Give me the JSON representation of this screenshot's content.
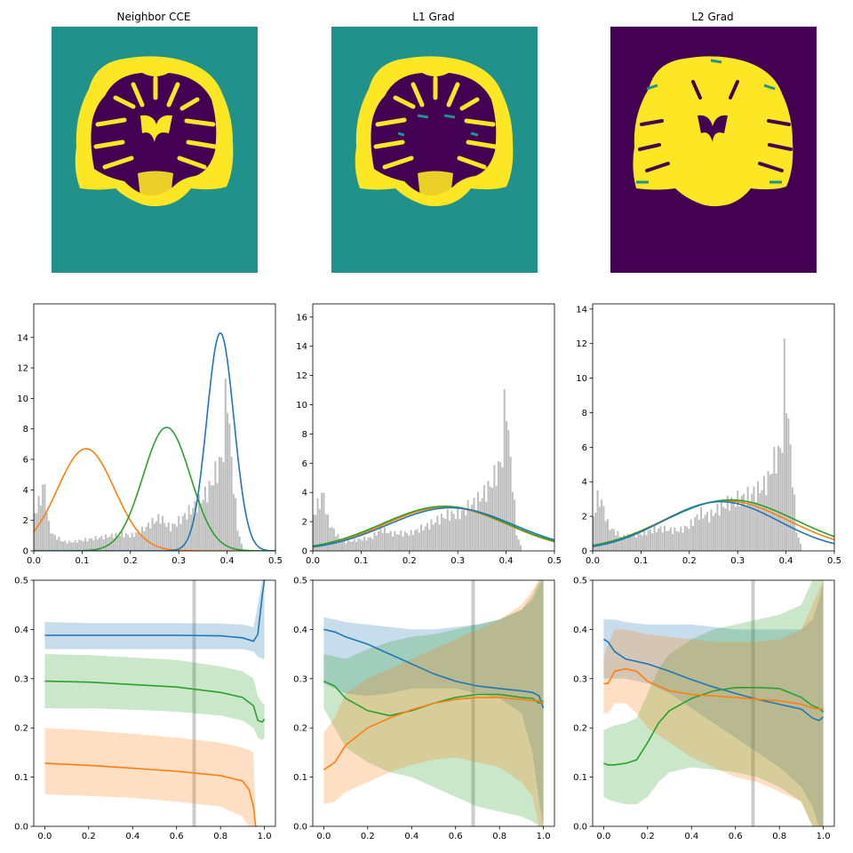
{
  "figure": {
    "panel_titles": [
      "Neighbor CCE",
      "L1 Grad",
      "L2 Grad"
    ]
  },
  "colors": {
    "image_bg_teal": "#21918c",
    "image_dark": "#440154",
    "image_yellow": "#fde725",
    "series_blue": "#1f77b4",
    "series_orange": "#ff7f0e",
    "series_green": "#2ca02c",
    "histogram": "#bdbdbd",
    "marker_line": "#cccccc"
  },
  "chart_data": [
    {
      "type": "heatmap",
      "title": "Neighbor CCE",
      "description_colors": {
        "background": "#21918c",
        "matter_a": "#440154",
        "matter_b": "#fde725"
      }
    },
    {
      "type": "heatmap",
      "title": "L1 Grad",
      "description_colors": {
        "background": "#21918c",
        "matter_a": "#440154",
        "matter_b": "#fde725"
      }
    },
    {
      "type": "heatmap",
      "title": "L2 Grad",
      "description_colors": {
        "background": "#440154",
        "matter_a": "#fde725",
        "matter_b": "#21918c"
      }
    },
    {
      "type": "line",
      "title": "",
      "xlim": [
        0,
        0.5
      ],
      "ylim": [
        0,
        16.2
      ],
      "xticks": [
        0.0,
        0.1,
        0.2,
        0.3,
        0.4,
        0.5
      ],
      "yticks": [
        0,
        2,
        4,
        6,
        8,
        10,
        12,
        14
      ],
      "histogram": {
        "x": [
          0.0,
          0.01,
          0.02,
          0.03,
          0.04,
          0.05,
          0.06,
          0.08,
          0.1,
          0.12,
          0.14,
          0.16,
          0.18,
          0.2,
          0.22,
          0.24,
          0.26,
          0.28,
          0.3,
          0.32,
          0.34,
          0.36,
          0.37,
          0.38,
          0.39,
          0.395,
          0.4,
          0.405,
          0.41,
          0.42,
          0.43
        ],
        "y": [
          2.5,
          3.2,
          4.5,
          1.5,
          1.0,
          0.8,
          0.6,
          0.6,
          0.7,
          0.8,
          0.9,
          1.0,
          1.1,
          1.0,
          1.3,
          1.8,
          2.2,
          1.5,
          2.0,
          2.6,
          3.2,
          4.0,
          4.8,
          5.5,
          6.3,
          9.8,
          10.8,
          6.5,
          5.0,
          1.5,
          0.2
        ]
      },
      "series": [
        {
          "color": "#ff7f0e",
          "gaussian": {
            "mu": 0.108,
            "sigma": 0.059,
            "peak": 6.7
          }
        },
        {
          "color": "#2ca02c",
          "gaussian": {
            "mu": 0.275,
            "sigma": 0.049,
            "peak": 8.1
          }
        },
        {
          "color": "#1f77b4",
          "gaussian": {
            "mu": 0.386,
            "sigma": 0.028,
            "peak": 14.3
          }
        }
      ]
    },
    {
      "type": "line",
      "title": "",
      "xlim": [
        0,
        0.5
      ],
      "ylim": [
        0,
        16.9
      ],
      "xticks": [
        0.0,
        0.1,
        0.2,
        0.3,
        0.4,
        0.5
      ],
      "yticks": [
        0,
        2,
        4,
        6,
        8,
        10,
        12,
        14,
        16
      ],
      "histogram": {
        "x": [
          0.0,
          0.01,
          0.02,
          0.03,
          0.04,
          0.05,
          0.06,
          0.08,
          0.1,
          0.12,
          0.14,
          0.16,
          0.18,
          0.2,
          0.22,
          0.24,
          0.26,
          0.28,
          0.3,
          0.32,
          0.34,
          0.36,
          0.37,
          0.38,
          0.39,
          0.395,
          0.4,
          0.405,
          0.41,
          0.42,
          0.43
        ],
        "y": [
          2.5,
          3.2,
          4.0,
          2.0,
          1.5,
          1.0,
          0.6,
          0.7,
          0.8,
          0.9,
          1.5,
          1.2,
          1.2,
          1.2,
          1.5,
          1.8,
          2.2,
          2.5,
          2.5,
          3.0,
          3.5,
          4.2,
          4.8,
          5.5,
          6.2,
          9.6,
          10.6,
          6.5,
          5.5,
          1.2,
          0.2
        ]
      },
      "series": [
        {
          "color": "#ff7f0e",
          "gaussian": {
            "mu": 0.275,
            "sigma": 0.127,
            "peak": 3.0
          }
        },
        {
          "color": "#2ca02c",
          "gaussian": {
            "mu": 0.273,
            "sigma": 0.13,
            "peak": 3.05
          }
        },
        {
          "color": "#1f77b4",
          "gaussian": {
            "mu": 0.285,
            "sigma": 0.13,
            "peak": 2.95
          }
        }
      ]
    },
    {
      "type": "line",
      "title": "",
      "xlim": [
        0,
        0.5
      ],
      "ylim": [
        0,
        14.3
      ],
      "xticks": [
        0.0,
        0.1,
        0.2,
        0.3,
        0.4,
        0.5
      ],
      "yticks": [
        0,
        2,
        4,
        6,
        8,
        10,
        12,
        14
      ],
      "histogram": {
        "x": [
          0.0,
          0.01,
          0.02,
          0.03,
          0.04,
          0.05,
          0.06,
          0.08,
          0.1,
          0.12,
          0.14,
          0.16,
          0.18,
          0.2,
          0.22,
          0.24,
          0.26,
          0.28,
          0.3,
          0.32,
          0.34,
          0.36,
          0.37,
          0.38,
          0.39,
          0.395,
          0.4,
          0.405,
          0.41,
          0.42,
          0.43
        ],
        "y": [
          2.0,
          3.2,
          2.6,
          1.5,
          1.2,
          1.0,
          0.8,
          0.9,
          1.0,
          1.2,
          1.3,
          1.2,
          1.2,
          1.5,
          2.2,
          2.0,
          2.5,
          2.8,
          3.0,
          3.2,
          3.5,
          4.0,
          5.0,
          5.5,
          6.0,
          10.7,
          9.0,
          6.5,
          5.0,
          1.2,
          0.2
        ]
      },
      "series": [
        {
          "color": "#ff7f0e",
          "gaussian": {
            "mu": 0.275,
            "sigma": 0.13,
            "peak": 2.9
          }
        },
        {
          "color": "#2ca02c",
          "gaussian": {
            "mu": 0.285,
            "sigma": 0.135,
            "peak": 2.95
          }
        },
        {
          "color": "#1f77b4",
          "gaussian": {
            "mu": 0.265,
            "sigma": 0.12,
            "peak": 2.85
          }
        }
      ]
    },
    {
      "type": "area",
      "title": "",
      "xlim": [
        -0.05,
        1.05
      ],
      "ylim": [
        0,
        0.5
      ],
      "xticks": [
        0.0,
        0.2,
        0.4,
        0.6,
        0.8,
        1.0
      ],
      "yticks": [
        0.0,
        0.1,
        0.2,
        0.3,
        0.4,
        0.5
      ],
      "vline": 0.68,
      "series": [
        {
          "color": "#1f77b4",
          "x": [
            0,
            0.2,
            0.4,
            0.6,
            0.8,
            0.9,
            0.95,
            0.97,
            0.99,
            1.0
          ],
          "mean": [
            0.388,
            0.388,
            0.388,
            0.388,
            0.387,
            0.383,
            0.376,
            0.39,
            0.47,
            0.5
          ],
          "lower": [
            0.36,
            0.36,
            0.36,
            0.36,
            0.36,
            0.36,
            0.355,
            0.345,
            0.34,
            0.34
          ],
          "upper": [
            0.415,
            0.413,
            0.413,
            0.413,
            0.412,
            0.41,
            0.405,
            0.45,
            0.5,
            0.5
          ]
        },
        {
          "color": "#2ca02c",
          "x": [
            0,
            0.2,
            0.4,
            0.6,
            0.8,
            0.9,
            0.95,
            0.97,
            0.99,
            1.0
          ],
          "mean": [
            0.295,
            0.293,
            0.288,
            0.283,
            0.272,
            0.262,
            0.245,
            0.215,
            0.212,
            0.218
          ],
          "lower": [
            0.24,
            0.24,
            0.237,
            0.233,
            0.225,
            0.215,
            0.2,
            0.18,
            0.175,
            0.18
          ],
          "upper": [
            0.35,
            0.348,
            0.343,
            0.338,
            0.325,
            0.315,
            0.3,
            0.265,
            0.25,
            0.25
          ]
        },
        {
          "color": "#ff7f0e",
          "x": [
            0,
            0.2,
            0.4,
            0.6,
            0.8,
            0.9,
            0.93,
            0.95,
            0.96,
            0.97
          ],
          "mean": [
            0.128,
            0.124,
            0.118,
            0.112,
            0.103,
            0.092,
            0.075,
            0.04,
            0.0,
            0.0
          ],
          "lower": [
            0.065,
            0.062,
            0.058,
            0.05,
            0.04,
            0.02,
            0.0,
            0.0,
            0.0,
            0.0
          ],
          "upper": [
            0.2,
            0.195,
            0.188,
            0.18,
            0.17,
            0.16,
            0.155,
            0.15,
            0.0,
            0.0
          ]
        }
      ]
    },
    {
      "type": "area",
      "title": "",
      "xlim": [
        -0.05,
        1.05
      ],
      "ylim": [
        0,
        0.5
      ],
      "xticks": [
        0.0,
        0.2,
        0.4,
        0.6,
        0.8,
        1.0
      ],
      "yticks": [
        0.0,
        0.1,
        0.2,
        0.3,
        0.4,
        0.5
      ],
      "vline": 0.68,
      "series": [
        {
          "color": "#1f77b4",
          "x": [
            0,
            0.05,
            0.1,
            0.2,
            0.3,
            0.4,
            0.5,
            0.6,
            0.7,
            0.8,
            0.9,
            0.95,
            0.98,
            1.0
          ],
          "mean": [
            0.4,
            0.395,
            0.385,
            0.37,
            0.35,
            0.33,
            0.31,
            0.295,
            0.285,
            0.28,
            0.275,
            0.272,
            0.265,
            0.24
          ],
          "lower": [
            0.29,
            0.28,
            0.27,
            0.265,
            0.27,
            0.28,
            0.28,
            0.28,
            0.27,
            0.26,
            0.23,
            0.15,
            0.05,
            0.0
          ],
          "upper": [
            0.425,
            0.42,
            0.415,
            0.41,
            0.405,
            0.4,
            0.4,
            0.405,
            0.41,
            0.42,
            0.44,
            0.46,
            0.49,
            0.5
          ]
        },
        {
          "color": "#2ca02c",
          "x": [
            0,
            0.05,
            0.1,
            0.2,
            0.3,
            0.4,
            0.5,
            0.6,
            0.7,
            0.8,
            0.9,
            0.95,
            0.98,
            1.0
          ],
          "mean": [
            0.295,
            0.285,
            0.26,
            0.235,
            0.225,
            0.235,
            0.25,
            0.262,
            0.268,
            0.268,
            0.262,
            0.26,
            0.25,
            0.255
          ],
          "lower": [
            0.24,
            0.2,
            0.16,
            0.13,
            0.11,
            0.1,
            0.08,
            0.06,
            0.04,
            0.03,
            0.02,
            0.01,
            0.0,
            0.0
          ],
          "upper": [
            0.35,
            0.345,
            0.34,
            0.36,
            0.375,
            0.385,
            0.39,
            0.4,
            0.41,
            0.42,
            0.44,
            0.47,
            0.5,
            0.5
          ]
        },
        {
          "color": "#ff7f0e",
          "x": [
            0,
            0.05,
            0.1,
            0.2,
            0.3,
            0.4,
            0.5,
            0.6,
            0.7,
            0.8,
            0.9,
            0.95,
            0.98,
            1.0
          ],
          "mean": [
            0.115,
            0.13,
            0.165,
            0.2,
            0.22,
            0.237,
            0.25,
            0.258,
            0.262,
            0.262,
            0.258,
            0.255,
            0.255,
            0.25
          ],
          "lower": [
            0.045,
            0.05,
            0.07,
            0.09,
            0.11,
            0.125,
            0.135,
            0.14,
            0.13,
            0.12,
            0.09,
            0.06,
            0.0,
            0.0
          ],
          "upper": [
            0.19,
            0.22,
            0.27,
            0.3,
            0.32,
            0.34,
            0.36,
            0.38,
            0.4,
            0.42,
            0.45,
            0.48,
            0.5,
            0.5
          ]
        }
      ]
    },
    {
      "type": "area",
      "title": "",
      "xlim": [
        -0.05,
        1.05
      ],
      "ylim": [
        0,
        0.5
      ],
      "xticks": [
        0.0,
        0.2,
        0.4,
        0.6,
        0.8,
        1.0
      ],
      "yticks": [
        0.0,
        0.1,
        0.2,
        0.3,
        0.4,
        0.5
      ],
      "vline": 0.68,
      "series": [
        {
          "color": "#1f77b4",
          "x": [
            0,
            0.02,
            0.05,
            0.1,
            0.2,
            0.3,
            0.4,
            0.5,
            0.6,
            0.7,
            0.8,
            0.9,
            0.95,
            0.98,
            1.0
          ],
          "mean": [
            0.38,
            0.375,
            0.355,
            0.34,
            0.33,
            0.315,
            0.298,
            0.283,
            0.27,
            0.258,
            0.248,
            0.238,
            0.22,
            0.215,
            0.222
          ],
          "lower": [
            0.3,
            0.3,
            0.3,
            0.3,
            0.29,
            0.27,
            0.24,
            0.21,
            0.18,
            0.15,
            0.12,
            0.08,
            0.04,
            0.0,
            0.0
          ],
          "upper": [
            0.42,
            0.42,
            0.42,
            0.415,
            0.41,
            0.41,
            0.41,
            0.405,
            0.4,
            0.4,
            0.4,
            0.4,
            0.42,
            0.46,
            0.5
          ]
        },
        {
          "color": "#2ca02c",
          "x": [
            0,
            0.02,
            0.05,
            0.1,
            0.15,
            0.2,
            0.25,
            0.3,
            0.4,
            0.5,
            0.6,
            0.7,
            0.8,
            0.9,
            0.95,
            0.98,
            1.0
          ],
          "mean": [
            0.128,
            0.125,
            0.125,
            0.128,
            0.135,
            0.17,
            0.21,
            0.235,
            0.26,
            0.275,
            0.282,
            0.282,
            0.28,
            0.262,
            0.245,
            0.24,
            0.232
          ],
          "lower": [
            0.06,
            0.055,
            0.05,
            0.045,
            0.045,
            0.06,
            0.09,
            0.11,
            0.12,
            0.115,
            0.11,
            0.1,
            0.08,
            0.05,
            0.0,
            0.0,
            0.0
          ],
          "upper": [
            0.195,
            0.2,
            0.205,
            0.21,
            0.22,
            0.27,
            0.32,
            0.35,
            0.38,
            0.4,
            0.41,
            0.42,
            0.43,
            0.45,
            0.5,
            0.5,
            0.5
          ]
        },
        {
          "color": "#ff7f0e",
          "x": [
            0,
            0.02,
            0.05,
            0.1,
            0.15,
            0.2,
            0.3,
            0.4,
            0.5,
            0.6,
            0.7,
            0.8,
            0.9,
            0.95,
            1.0
          ],
          "mean": [
            0.29,
            0.29,
            0.315,
            0.32,
            0.315,
            0.295,
            0.275,
            0.268,
            0.265,
            0.262,
            0.258,
            0.255,
            0.248,
            0.24,
            0.238
          ],
          "lower": [
            0.23,
            0.23,
            0.25,
            0.25,
            0.23,
            0.2,
            0.17,
            0.14,
            0.12,
            0.1,
            0.09,
            0.07,
            0.05,
            0.0,
            0.0
          ],
          "upper": [
            0.34,
            0.37,
            0.4,
            0.4,
            0.395,
            0.39,
            0.385,
            0.38,
            0.375,
            0.375,
            0.375,
            0.38,
            0.4,
            0.45,
            0.5
          ]
        }
      ]
    }
  ]
}
